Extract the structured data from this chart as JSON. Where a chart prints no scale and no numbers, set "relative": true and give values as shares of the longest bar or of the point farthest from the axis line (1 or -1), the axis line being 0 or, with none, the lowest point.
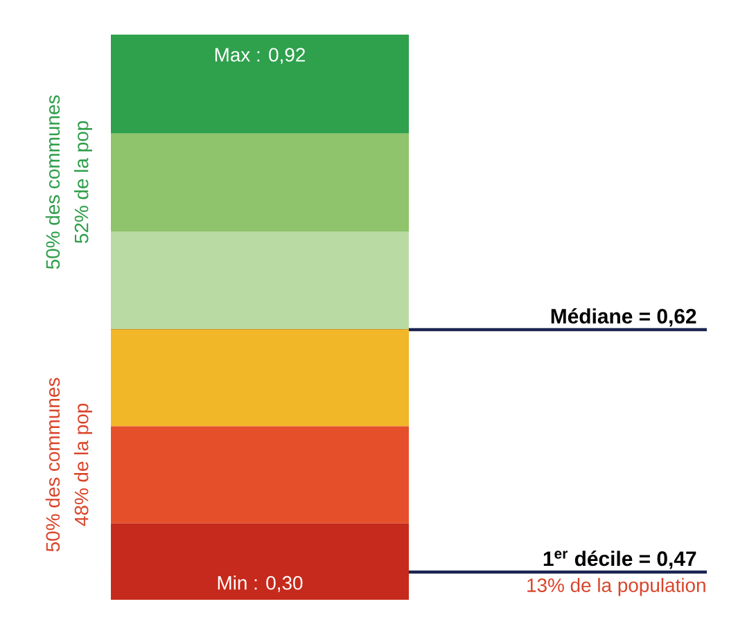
{
  "chart_data": {
    "type": "bar",
    "stacked": true,
    "relative": true,
    "categories": [
      null
    ],
    "series": [
      {
        "color": "#c62a1c",
        "values": [
          0.135
        ]
      },
      {
        "color": "#e5502a",
        "values": [
          0.172
        ]
      },
      {
        "color": "#f2b629",
        "values": [
          0.172
        ]
      },
      {
        "color": "#b9dba3",
        "values": [
          0.172
        ]
      },
      {
        "color": "#8fc36c",
        "values": [
          0.174
        ]
      },
      {
        "color": "#2fa04c",
        "values": [
          0.175
        ]
      }
    ],
    "ref_lines": [
      {
        "axis": "y",
        "value": 0.478,
        "color": "#1c2550"
      },
      {
        "axis": "y",
        "value": 0.049,
        "color": "#1c2550"
      }
    ],
    "annotations": [
      "Max : 0,92",
      "Min : 0,30",
      "50% des communes",
      "52% de la pop",
      "50% des communes",
      "48% de la pop",
      "13% de la population",
      "Médiane = 0,62",
      "1$^{er}$ décile = 0,47"
    ]
  }
}
